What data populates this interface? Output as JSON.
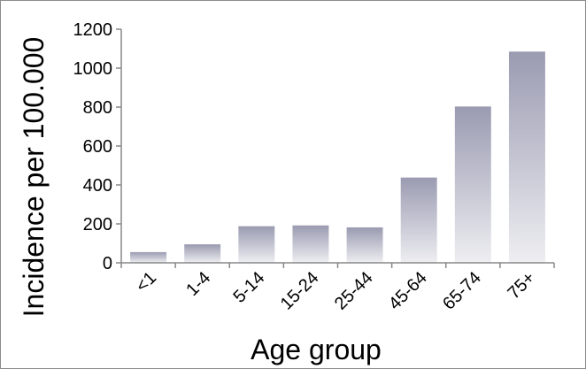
{
  "chart_data": {
    "type": "bar",
    "categories": [
      "<1",
      "1-4",
      "5-14",
      "15-24",
      "25-44",
      "45-64",
      "65-74",
      "75+"
    ],
    "values": [
      55,
      95,
      188,
      192,
      182,
      438,
      803,
      1085
    ],
    "xlabel": "Age group",
    "ylabel": "Incidence per 100.000",
    "ylim": [
      0,
      1200
    ],
    "yticks": [
      0,
      200,
      400,
      600,
      800,
      1000,
      1200
    ],
    "grid": false,
    "bar_color_top": "#9a9bb1",
    "bar_color_bottom": "#eeeef2"
  }
}
